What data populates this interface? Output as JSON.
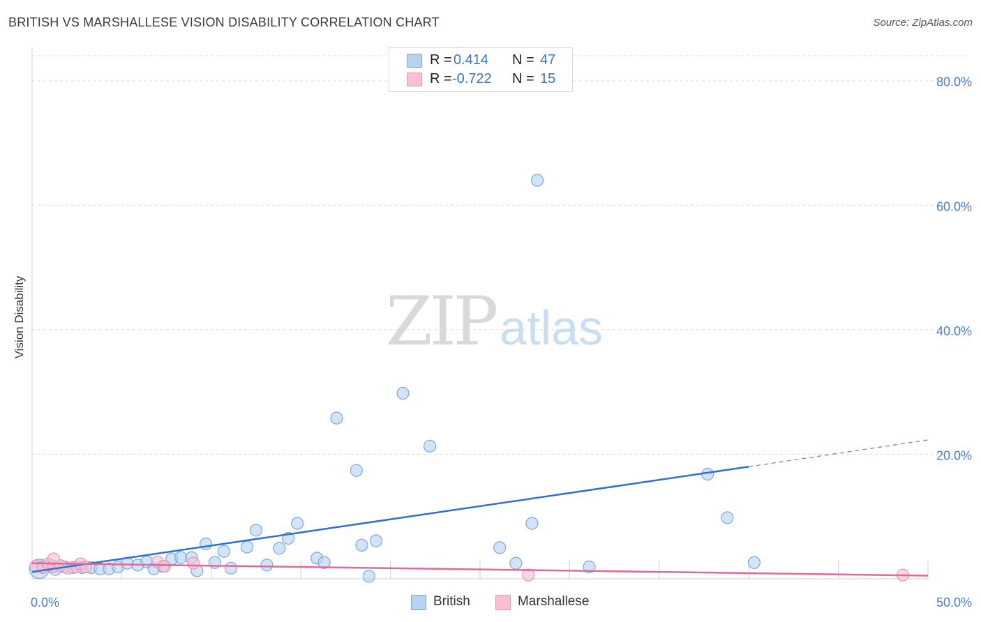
{
  "title": "BRITISH VS MARSHALLESE VISION DISABILITY CORRELATION CHART",
  "source": "Source: ZipAtlas.com",
  "watermark": {
    "zip": "ZIP",
    "atlas": "atlas"
  },
  "colors": {
    "british_fill": "#b8d2f2",
    "british_stroke": "#7aa6de",
    "british_line": "#2e6fd1",
    "marshallese_fill": "#f8c0d2",
    "marshallese_stroke": "#ee93b2",
    "marshallese_line": "#e0689a",
    "tick_label": "#4a7fcc",
    "grid": "#dcdcdc"
  },
  "legend_top": {
    "rows": [
      {
        "r_label": "R =",
        "r_value": "0.414",
        "n_label": "N =",
        "n_value": "47"
      },
      {
        "r_label": "R =",
        "r_value": "-0.722",
        "n_label": "N =",
        "n_value": "15"
      }
    ]
  },
  "legend_bottom": {
    "british": "British",
    "marshallese": "Marshallese"
  },
  "chart_data": {
    "type": "scatter",
    "title": "BRITISH VS MARSHALLESE VISION DISABILITY CORRELATION CHART",
    "xlabel": "",
    "ylabel": "Vision Disability",
    "xlim": [
      0,
      50
    ],
    "ylim": [
      0,
      84
    ],
    "x_tick_labels": [
      {
        "value": 0,
        "label": "0.0%"
      },
      {
        "value": 50,
        "label": "50.0%"
      }
    ],
    "y_tick_labels": [
      {
        "value": 20,
        "label": "20.0%"
      },
      {
        "value": 40,
        "label": "40.0%"
      },
      {
        "value": 60,
        "label": "60.0%"
      },
      {
        "value": 80,
        "label": "80.0%"
      }
    ],
    "grid": true,
    "series": [
      {
        "name": "British",
        "r": 0.414,
        "n": 47,
        "points": [
          [
            0.4,
            1.6
          ],
          [
            0.6,
            1.9
          ],
          [
            1.0,
            2.2
          ],
          [
            1.3,
            1.5
          ],
          [
            1.8,
            1.9
          ],
          [
            2.3,
            1.8
          ],
          [
            2.8,
            1.8
          ],
          [
            3.3,
            1.8
          ],
          [
            3.8,
            1.6
          ],
          [
            4.3,
            1.6
          ],
          [
            4.8,
            1.9
          ],
          [
            5.3,
            2.5
          ],
          [
            5.9,
            2.2
          ],
          [
            6.4,
            2.7
          ],
          [
            6.8,
            1.6
          ],
          [
            7.3,
            2.0
          ],
          [
            7.8,
            3.2
          ],
          [
            8.3,
            3.4
          ],
          [
            8.9,
            3.4
          ],
          [
            9.2,
            1.3
          ],
          [
            9.7,
            5.6
          ],
          [
            10.2,
            2.6
          ],
          [
            10.7,
            4.4
          ],
          [
            11.1,
            1.7
          ],
          [
            12.5,
            7.8
          ],
          [
            12.0,
            5.1
          ],
          [
            13.1,
            2.2
          ],
          [
            13.8,
            4.9
          ],
          [
            14.3,
            6.5
          ],
          [
            14.8,
            8.9
          ],
          [
            15.9,
            3.3
          ],
          [
            16.3,
            2.6
          ],
          [
            17.0,
            25.8
          ],
          [
            18.1,
            17.4
          ],
          [
            18.4,
            5.4
          ],
          [
            18.8,
            0.4
          ],
          [
            19.2,
            6.1
          ],
          [
            20.7,
            29.8
          ],
          [
            22.2,
            21.3
          ],
          [
            26.1,
            5.0
          ],
          [
            27.0,
            2.5
          ],
          [
            27.9,
            8.9
          ],
          [
            28.2,
            64.0
          ],
          [
            31.1,
            1.9
          ],
          [
            37.7,
            16.8
          ],
          [
            38.8,
            9.8
          ],
          [
            40.3,
            2.6
          ]
        ],
        "trend": {
          "x": [
            0,
            40
          ],
          "y": [
            1.1,
            18.0
          ],
          "dashed_extension": {
            "x": [
              40,
              50
            ],
            "y": [
              18.0,
              22.3
            ]
          }
        }
      },
      {
        "name": "Marshallese",
        "r": -0.722,
        "n": 15,
        "points": [
          [
            0.2,
            2.0
          ],
          [
            0.6,
            1.8
          ],
          [
            0.9,
            2.4
          ],
          [
            1.2,
            2.0
          ],
          [
            1.6,
            2.1
          ],
          [
            1.2,
            3.2
          ],
          [
            2.0,
            1.7
          ],
          [
            2.5,
            1.9
          ],
          [
            2.7,
            2.4
          ],
          [
            3.0,
            1.9
          ],
          [
            7.0,
            2.7
          ],
          [
            7.4,
            2.0
          ],
          [
            9.0,
            2.5
          ],
          [
            27.7,
            0.6
          ],
          [
            48.6,
            0.6
          ]
        ],
        "trend": {
          "x": [
            0,
            50
          ],
          "y": [
            2.5,
            0.5
          ]
        }
      }
    ]
  }
}
